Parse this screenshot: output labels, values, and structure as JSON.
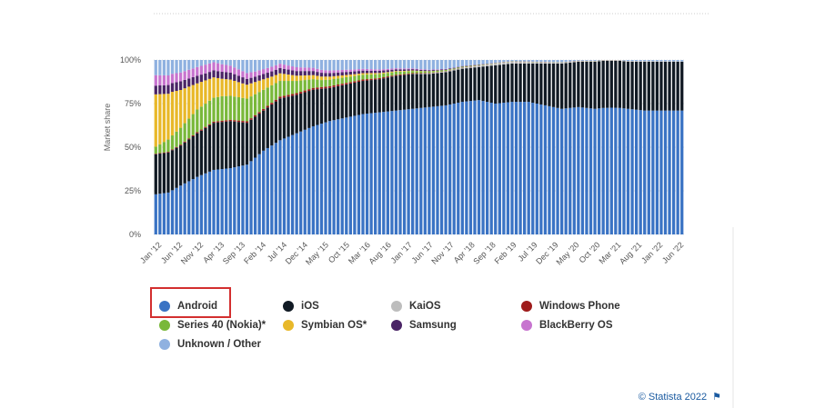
{
  "chart_data": {
    "type": "bar",
    "stacked": true,
    "ylabel": "Market share",
    "ylim": [
      0,
      100
    ],
    "y_ticks": [
      "0%",
      "25%",
      "50%",
      "75%",
      "100%"
    ],
    "x_tick_labels": [
      "Jan '12",
      "Jun '12",
      "Nov '12",
      "Apr '13",
      "Sep '13",
      "Feb '14",
      "Jul '14",
      "Dec '14",
      "May '15",
      "Oct '15",
      "Mar '16",
      "Aug '16",
      "Jan '17",
      "Jun '17",
      "Nov '17",
      "Apr '18",
      "Sep '18",
      "Feb '19",
      "Jul '19",
      "Dec '19",
      "May '20",
      "Oct '20",
      "Mar '21",
      "Aug '21",
      "Jan '22",
      "Jun '22"
    ],
    "months_count": 128,
    "series": [
      {
        "name": "Android",
        "color": "#3a73c4",
        "keyframes": [
          [
            0,
            23
          ],
          [
            3,
            24
          ],
          [
            6,
            28
          ],
          [
            10,
            33
          ],
          [
            14,
            37
          ],
          [
            18,
            38
          ],
          [
            22,
            40
          ],
          [
            26,
            48
          ],
          [
            30,
            54
          ],
          [
            34,
            58
          ],
          [
            38,
            62
          ],
          [
            42,
            65
          ],
          [
            46,
            67
          ],
          [
            50,
            69
          ],
          [
            54,
            70
          ],
          [
            58,
            71
          ],
          [
            62,
            72
          ],
          [
            66,
            73
          ],
          [
            70,
            74
          ],
          [
            74,
            76
          ],
          [
            78,
            77
          ],
          [
            82,
            75
          ],
          [
            86,
            76
          ],
          [
            90,
            76
          ],
          [
            94,
            74
          ],
          [
            98,
            72
          ],
          [
            102,
            73
          ],
          [
            106,
            72
          ],
          [
            110,
            73
          ],
          [
            114,
            72
          ],
          [
            118,
            71
          ],
          [
            122,
            71
          ],
          [
            127,
            71
          ]
        ]
      },
      {
        "name": "iOS",
        "color": "#111a24",
        "keyframes": [
          [
            0,
            23
          ],
          [
            3,
            23
          ],
          [
            6,
            23
          ],
          [
            10,
            25
          ],
          [
            14,
            27
          ],
          [
            18,
            27
          ],
          [
            22,
            24
          ],
          [
            26,
            23
          ],
          [
            30,
            24
          ],
          [
            34,
            22
          ],
          [
            38,
            21
          ],
          [
            42,
            19
          ],
          [
            46,
            19
          ],
          [
            50,
            19
          ],
          [
            54,
            19
          ],
          [
            58,
            20
          ],
          [
            62,
            20
          ],
          [
            66,
            19
          ],
          [
            70,
            19
          ],
          [
            74,
            19
          ],
          [
            78,
            19
          ],
          [
            82,
            22
          ],
          [
            86,
            22
          ],
          [
            90,
            22
          ],
          [
            94,
            24
          ],
          [
            98,
            26
          ],
          [
            102,
            26
          ],
          [
            106,
            27
          ],
          [
            110,
            27
          ],
          [
            114,
            27
          ],
          [
            118,
            28
          ],
          [
            122,
            28
          ],
          [
            127,
            28
          ]
        ]
      },
      {
        "name": "KaiOS",
        "color": "#bdbdbd",
        "keyframes": [
          [
            0,
            0
          ],
          [
            60,
            0
          ],
          [
            66,
            0.3
          ],
          [
            72,
            0.5
          ],
          [
            78,
            0.8
          ],
          [
            84,
            1
          ],
          [
            90,
            0.8
          ],
          [
            96,
            0.5
          ],
          [
            102,
            0.4
          ],
          [
            108,
            0.3
          ],
          [
            127,
            0.2
          ]
        ]
      },
      {
        "name": "Windows Phone",
        "color": "#9e1b1b",
        "keyframes": [
          [
            0,
            0.3
          ],
          [
            10,
            0.6
          ],
          [
            20,
            0.8
          ],
          [
            30,
            1
          ],
          [
            40,
            1
          ],
          [
            50,
            0.8
          ],
          [
            60,
            0.4
          ],
          [
            70,
            0.2
          ],
          [
            80,
            0.1
          ],
          [
            127,
            0
          ]
        ]
      },
      {
        "name": "Series 40 (Nokia)*",
        "color": "#79b83a",
        "keyframes": [
          [
            0,
            4
          ],
          [
            4,
            8
          ],
          [
            10,
            13
          ],
          [
            16,
            14
          ],
          [
            22,
            13
          ],
          [
            28,
            10
          ],
          [
            34,
            7
          ],
          [
            40,
            4
          ],
          [
            48,
            3
          ],
          [
            56,
            2
          ],
          [
            64,
            1
          ],
          [
            72,
            0.5
          ],
          [
            80,
            0.2
          ],
          [
            127,
            0
          ]
        ]
      },
      {
        "name": "Symbian OS*",
        "color": "#e8b829",
        "keyframes": [
          [
            0,
            30
          ],
          [
            4,
            25
          ],
          [
            10,
            15
          ],
          [
            16,
            10
          ],
          [
            22,
            8
          ],
          [
            28,
            5
          ],
          [
            34,
            3
          ],
          [
            40,
            2
          ],
          [
            48,
            1
          ],
          [
            56,
            0.5
          ],
          [
            64,
            0.2
          ],
          [
            72,
            0
          ],
          [
            127,
            0
          ]
        ]
      },
      {
        "name": "Samsung",
        "color": "#4a2466",
        "keyframes": [
          [
            0,
            5
          ],
          [
            6,
            5
          ],
          [
            12,
            4
          ],
          [
            18,
            4
          ],
          [
            24,
            3
          ],
          [
            30,
            3
          ],
          [
            36,
            2.5
          ],
          [
            42,
            2
          ],
          [
            50,
            1.5
          ],
          [
            58,
            1
          ],
          [
            66,
            0.5
          ],
          [
            74,
            0.3
          ],
          [
            82,
            0.1
          ],
          [
            127,
            0
          ]
        ]
      },
      {
        "name": "BlackBerry OS",
        "color": "#c774cf",
        "keyframes": [
          [
            0,
            6
          ],
          [
            6,
            5
          ],
          [
            12,
            5
          ],
          [
            18,
            4
          ],
          [
            24,
            3
          ],
          [
            30,
            2.5
          ],
          [
            36,
            2
          ],
          [
            42,
            1.5
          ],
          [
            50,
            1
          ],
          [
            58,
            0.6
          ],
          [
            66,
            0.3
          ],
          [
            74,
            0.1
          ],
          [
            127,
            0
          ]
        ]
      },
      {
        "name": "Unknown / Other",
        "color": "#8fb1e0",
        "keyframes": "remainder"
      }
    ]
  },
  "legend": [
    {
      "label": "Android",
      "color": "#3a73c4"
    },
    {
      "label": "iOS",
      "color": "#111a24"
    },
    {
      "label": "KaiOS",
      "color": "#bdbdbd"
    },
    {
      "label": "Windows Phone",
      "color": "#9e1b1b"
    },
    {
      "label": "Series 40 (Nokia)*",
      "color": "#79b83a"
    },
    {
      "label": "Symbian OS*",
      "color": "#e8b829"
    },
    {
      "label": "Samsung",
      "color": "#4a2466"
    },
    {
      "label": "BlackBerry OS",
      "color": "#c774cf"
    },
    {
      "label": "Unknown / Other",
      "color": "#8fb1e0"
    }
  ],
  "credit": {
    "text": "© Statista 2022",
    "flag": "⚑"
  }
}
